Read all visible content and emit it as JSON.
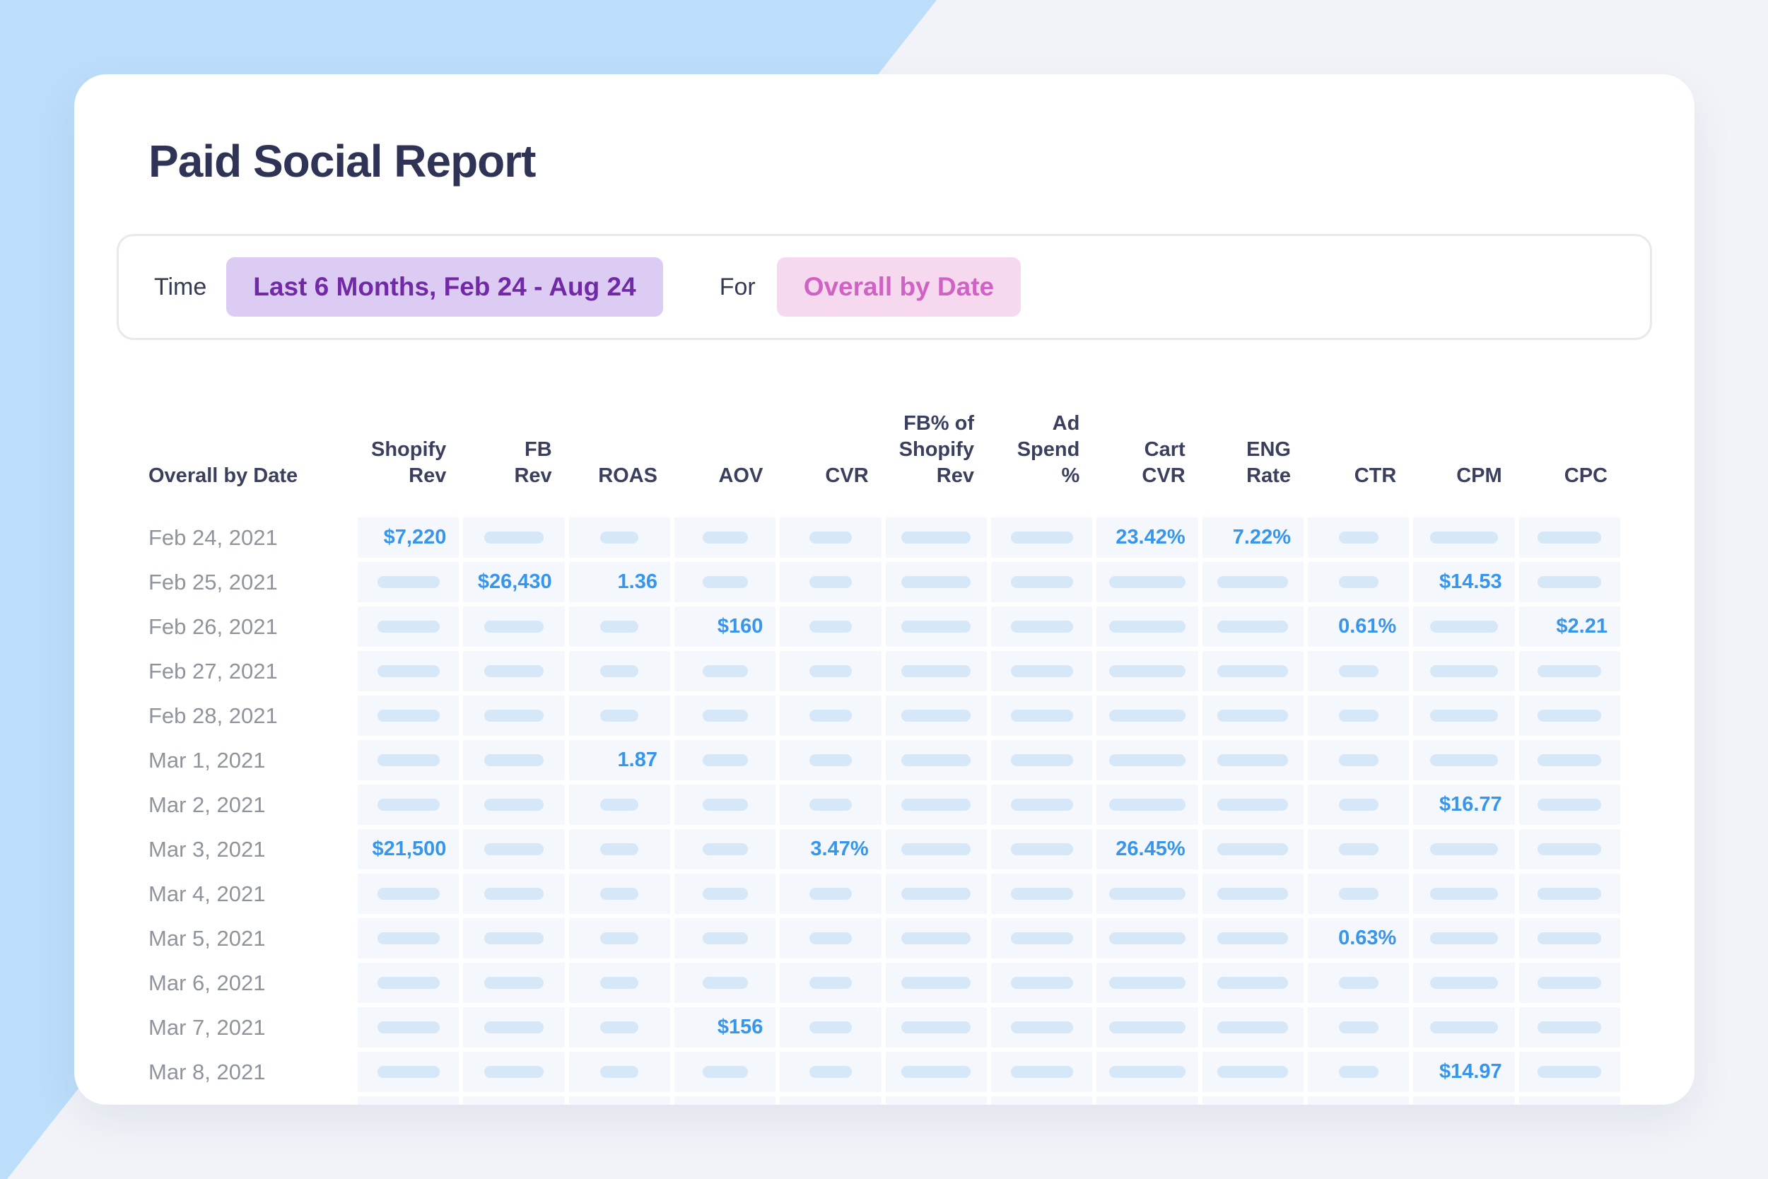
{
  "page": {
    "title": "Paid Social Report"
  },
  "filters": {
    "time_label": "Time",
    "time_value": "Last 6 Months, Feb 24 - Aug 24",
    "for_label": "For",
    "for_value": "Overall by Date"
  },
  "colors": {
    "bg_gray": "#F1F3F8",
    "bg_blue": "#BDDEFA",
    "title": "#2F3456",
    "header": "#3A3F5E",
    "date": "#8F949C",
    "cell_bg": "#F4F7FC",
    "pill": "#D6E7F8",
    "value_blue": "#3796EC",
    "bar_border": "#E8E9EC",
    "chip_purple_bg": "#DCCBF3",
    "chip_purple_text": "#7229A6",
    "chip_pink_bg": "#F7D9EF",
    "chip_pink_text": "#CF63C4"
  },
  "table": {
    "date_header": "Overall by Date",
    "columns": [
      {
        "id": "shopify-rev",
        "label_lines": [
          "Shopify",
          "Rev"
        ]
      },
      {
        "id": "fb-rev",
        "label_lines": [
          "FB",
          "Rev"
        ]
      },
      {
        "id": "roas",
        "label_lines": [
          "ROAS"
        ]
      },
      {
        "id": "aov",
        "label_lines": [
          "AOV"
        ]
      },
      {
        "id": "cvr",
        "label_lines": [
          "CVR"
        ]
      },
      {
        "id": "fb-pct-of-shopify-rev",
        "label_lines": [
          "FB% of",
          "Shopify",
          "Rev"
        ]
      },
      {
        "id": "ad-spend-pct",
        "label_lines": [
          "Ad",
          "Spend",
          "%"
        ]
      },
      {
        "id": "cart-cvr",
        "label_lines": [
          "Cart",
          "CVR"
        ]
      },
      {
        "id": "eng-rate",
        "label_lines": [
          "ENG",
          "Rate"
        ]
      },
      {
        "id": "ctr",
        "label_lines": [
          "CTR"
        ]
      },
      {
        "id": "cpm",
        "label_lines": [
          "CPM"
        ]
      },
      {
        "id": "cpc",
        "label_lines": [
          "CPC"
        ]
      }
    ],
    "pill_widths": [
      88,
      84,
      54,
      64,
      60,
      98,
      88,
      108,
      100,
      56,
      96,
      90
    ],
    "rows": [
      {
        "date": "Feb 24, 2021",
        "cells": [
          "$7,220",
          null,
          null,
          null,
          null,
          null,
          null,
          "23.42%",
          "7.22%",
          null,
          null,
          null
        ]
      },
      {
        "date": "Feb 25, 2021",
        "cells": [
          null,
          "$26,430",
          "1.36",
          null,
          null,
          null,
          null,
          null,
          null,
          null,
          "$14.53",
          null
        ]
      },
      {
        "date": "Feb 26, 2021",
        "cells": [
          null,
          null,
          null,
          "$160",
          null,
          null,
          null,
          null,
          null,
          "0.61%",
          null,
          "$2.21"
        ]
      },
      {
        "date": "Feb 27, 2021",
        "cells": [
          null,
          null,
          null,
          null,
          null,
          null,
          null,
          null,
          null,
          null,
          null,
          null
        ]
      },
      {
        "date": "Feb 28, 2021",
        "cells": [
          null,
          null,
          null,
          null,
          null,
          null,
          null,
          null,
          null,
          null,
          null,
          null
        ]
      },
      {
        "date": "Mar 1, 2021",
        "cells": [
          null,
          null,
          "1.87",
          null,
          null,
          null,
          null,
          null,
          null,
          null,
          null,
          null
        ]
      },
      {
        "date": "Mar 2, 2021",
        "cells": [
          null,
          null,
          null,
          null,
          null,
          null,
          null,
          null,
          null,
          null,
          "$16.77",
          null
        ]
      },
      {
        "date": "Mar 3, 2021",
        "cells": [
          "$21,500",
          null,
          null,
          null,
          "3.47%",
          null,
          null,
          "26.45%",
          null,
          null,
          null,
          null
        ]
      },
      {
        "date": "Mar 4, 2021",
        "cells": [
          null,
          null,
          null,
          null,
          null,
          null,
          null,
          null,
          null,
          null,
          null,
          null
        ]
      },
      {
        "date": "Mar 5, 2021",
        "cells": [
          null,
          null,
          null,
          null,
          null,
          null,
          null,
          null,
          null,
          "0.63%",
          null,
          null
        ]
      },
      {
        "date": "Mar 6, 2021",
        "cells": [
          null,
          null,
          null,
          null,
          null,
          null,
          null,
          null,
          null,
          null,
          null,
          null
        ]
      },
      {
        "date": "Mar 7, 2021",
        "cells": [
          null,
          null,
          null,
          "$156",
          null,
          null,
          null,
          null,
          null,
          null,
          null,
          null
        ]
      },
      {
        "date": "Mar 8, 2021",
        "cells": [
          null,
          null,
          null,
          null,
          null,
          null,
          null,
          null,
          null,
          null,
          "$14.97",
          null
        ]
      }
    ],
    "partial_row_visible": true
  }
}
